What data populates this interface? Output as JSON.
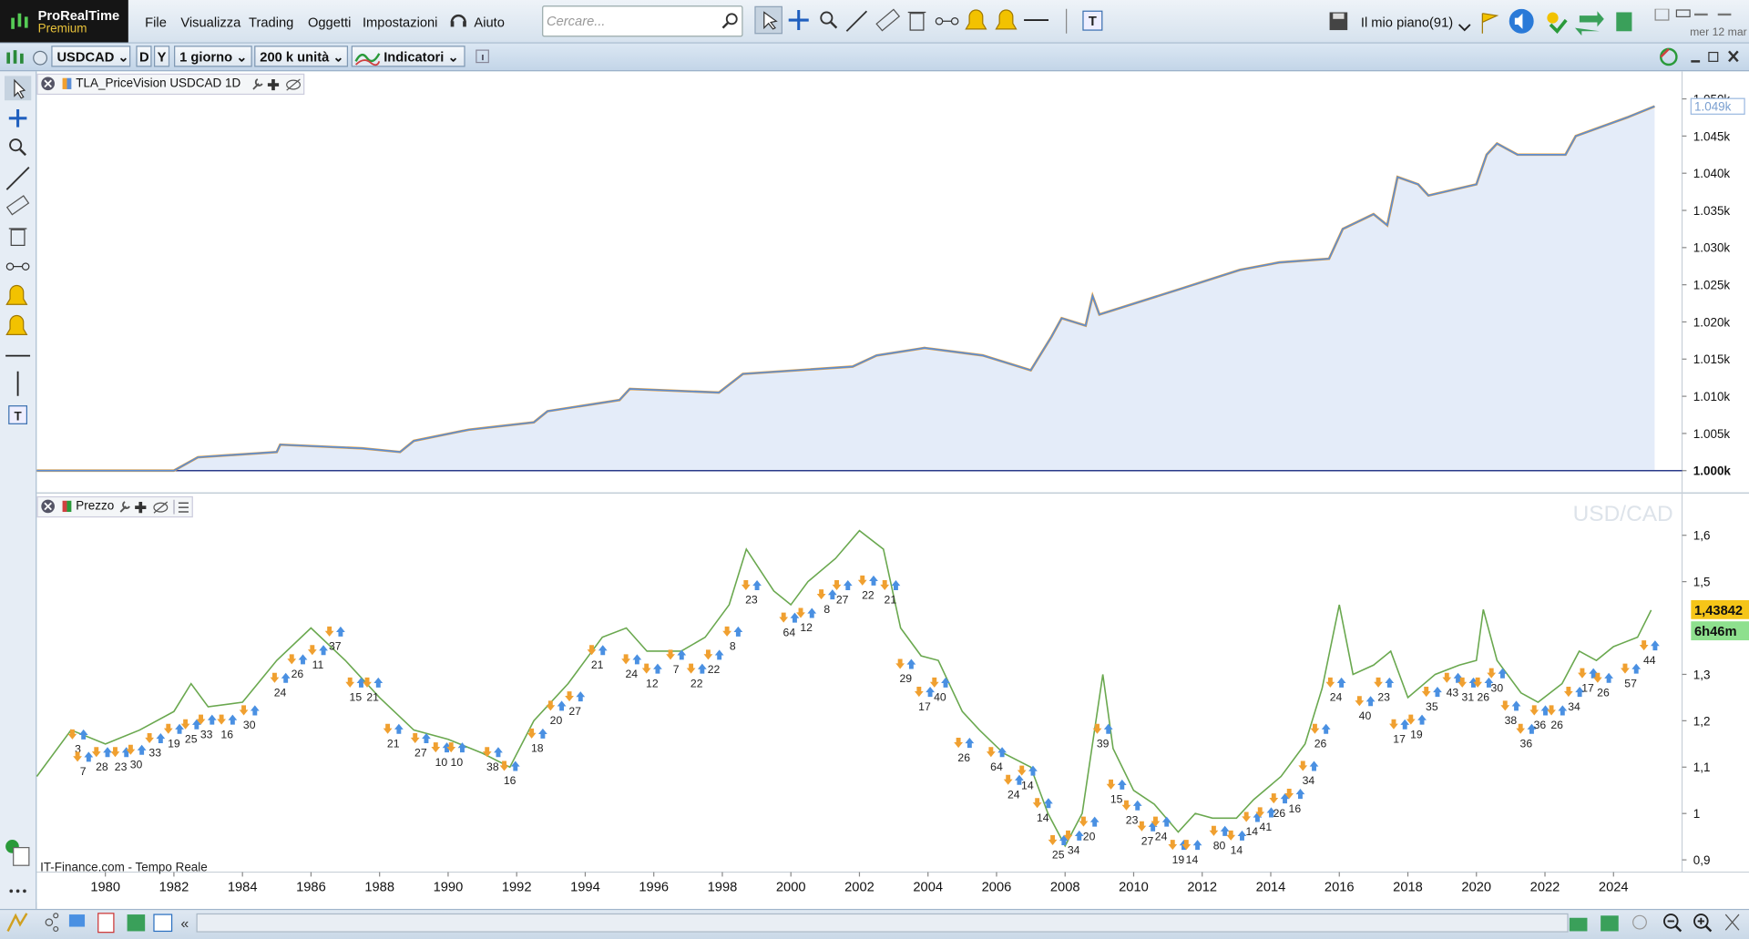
{
  "app": {
    "name": "ProRealTime",
    "edition": "Premium"
  },
  "menu": [
    "File",
    "Visualizza",
    "Trading",
    "Oggetti",
    "Impostazioni"
  ],
  "help": "Aiuto",
  "search_placeholder": "Cercare...",
  "plan": "Il mio piano(91)",
  "date": "mer 12 mar",
  "toolbar": {
    "instrument": "USDCAD",
    "period_d": "D",
    "period_y": "Y",
    "interval": "1 giorno",
    "units": "200 k unità",
    "indicators": "Indicatori"
  },
  "source": "IT-Finance.com - Tempo Reale",
  "chart_data": [
    {
      "type": "area",
      "title": "TLA_PriceVision USDCAD 1D",
      "color": "#5b8ed6",
      "fill_color": "#e4ecf9",
      "xlim": [
        1978.0,
        2026.0
      ],
      "x": [
        1978.0,
        1982.0,
        1982.7,
        1985.0,
        1985.1,
        1987.5,
        1988.6,
        1989.0,
        1990.6,
        1992.5,
        1992.9,
        1995.0,
        1995.3,
        1997.9,
        1998.6,
        2001.8,
        2002.5,
        2003.9,
        2005.6,
        2007.0,
        2007.6,
        2007.9,
        2008.6,
        2008.8,
        2009.0,
        2011.4,
        2013.1,
        2014.25,
        2015.7,
        2016.1,
        2017.0,
        2017.4,
        2017.7,
        2018.3,
        2018.6,
        2020.0,
        2020.3,
        2020.6,
        2021.2,
        2022.6,
        2022.9,
        2024.4,
        2025.2
      ],
      "values": [
        1.0,
        1.0,
        1.0018,
        1.0025,
        1.0035,
        1.003,
        1.0025,
        1.004,
        1.0055,
        1.0065,
        1.008,
        1.0095,
        1.011,
        1.0105,
        1.013,
        1.014,
        1.0155,
        1.0165,
        1.0155,
        1.0135,
        1.018,
        1.0205,
        1.0195,
        1.0235,
        1.021,
        1.0245,
        1.027,
        1.028,
        1.0285,
        1.0325,
        1.0345,
        1.033,
        1.0395,
        1.0385,
        1.037,
        1.0385,
        1.0425,
        1.044,
        1.0425,
        1.0425,
        1.045,
        1.0475,
        1.049
      ],
      "ylim": [
        0.9973,
        1.0534
      ],
      "yticks": [
        {
          "value": 1.0,
          "label": "1.000k"
        },
        {
          "value": 1.005,
          "label": "1.005k"
        },
        {
          "value": 1.01,
          "label": "1.010k"
        },
        {
          "value": 1.015,
          "label": "1.015k"
        },
        {
          "value": 1.02,
          "label": "1.020k"
        },
        {
          "value": 1.025,
          "label": "1.025k"
        },
        {
          "value": 1.03,
          "label": "1.030k"
        },
        {
          "value": 1.035,
          "label": "1.035k"
        },
        {
          "value": 1.04,
          "label": "1.040k"
        },
        {
          "value": 1.045,
          "label": "1.045k"
        },
        {
          "value": 1.05,
          "label": "1.050k"
        }
      ],
      "last_value": 1.049,
      "last_value_label": "1.049k"
    },
    {
      "type": "line",
      "title": "Prezzo",
      "watermark": "USD/CAD",
      "color": "#6aa84f",
      "xlim": [
        1978.0,
        2026.0
      ],
      "xticks": [
        1980,
        1982,
        1984,
        1986,
        1988,
        1990,
        1992,
        1994,
        1996,
        1998,
        2000,
        2002,
        2004,
        2006,
        2008,
        2010,
        2012,
        2014,
        2016,
        2018,
        2020,
        2022,
        2024
      ],
      "x": [
        1978.0,
        1979.0,
        1980.0,
        1981.0,
        1982.0,
        1982.5,
        1983.0,
        1984.0,
        1985.0,
        1986.0,
        1987.0,
        1988.0,
        1989.0,
        1990.0,
        1991.0,
        1991.8,
        1992.5,
        1993.5,
        1994.5,
        1995.2,
        1995.8,
        1996.8,
        1997.5,
        1998.2,
        1998.7,
        1999.5,
        2000.0,
        2000.5,
        2001.3,
        2002.0,
        2002.7,
        2003.2,
        2003.8,
        2004.3,
        2005.0,
        2005.5,
        2006.2,
        2007.0,
        2007.5,
        2008.0,
        2008.5,
        2009.1,
        2009.4,
        2010.0,
        2010.6,
        2011.3,
        2011.8,
        2012.3,
        2013.0,
        2013.5,
        2014.3,
        2015.0,
        2015.5,
        2016.0,
        2016.4,
        2017.0,
        2017.5,
        2018.0,
        2018.8,
        2019.5,
        2020.0,
        2020.2,
        2020.6,
        2021.3,
        2021.8,
        2022.5,
        2023.0,
        2023.5,
        2024.0,
        2024.7,
        2025.1
      ],
      "values": [
        1.08,
        1.18,
        1.15,
        1.18,
        1.22,
        1.28,
        1.23,
        1.24,
        1.33,
        1.4,
        1.33,
        1.25,
        1.18,
        1.16,
        1.13,
        1.1,
        1.2,
        1.28,
        1.38,
        1.4,
        1.35,
        1.35,
        1.38,
        1.45,
        1.57,
        1.48,
        1.45,
        1.5,
        1.55,
        1.61,
        1.57,
        1.4,
        1.34,
        1.33,
        1.22,
        1.18,
        1.13,
        1.1,
        1.0,
        0.93,
        1.0,
        1.3,
        1.14,
        1.05,
        1.02,
        0.96,
        1.0,
        0.99,
        0.99,
        1.03,
        1.08,
        1.15,
        1.27,
        1.45,
        1.3,
        1.32,
        1.35,
        1.25,
        1.3,
        1.32,
        1.33,
        1.44,
        1.33,
        1.26,
        1.24,
        1.28,
        1.35,
        1.33,
        1.36,
        1.38,
        1.43842
      ],
      "ylim": [
        0.876,
        1.6865
      ],
      "yticks": [
        {
          "value": 0.9,
          "label": "0,9"
        },
        1,
        {
          "value": 1.1,
          "label": "1,1"
        },
        {
          "value": 1.2,
          "label": "1,2"
        },
        {
          "value": 1.3,
          "label": "1,3"
        },
        {
          "value": 1.5,
          "label": "1,5"
        },
        {
          "value": 1.6,
          "label": "1,6"
        }
      ],
      "last_value": 1.43842,
      "last_value_label": "1,43842",
      "countdown": "6h46m",
      "annotations": [
        {
          "x": 1979.2,
          "y": 1.138,
          "label": "3"
        },
        {
          "x": 1979.35,
          "y": 1.09,
          "label": "7"
        },
        {
          "x": 1979.9,
          "y": 1.1,
          "label": "28"
        },
        {
          "x": 1980.45,
          "y": 1.1,
          "label": "23"
        },
        {
          "x": 1980.9,
          "y": 1.105,
          "label": "30"
        },
        {
          "x": 1981.45,
          "y": 1.13,
          "label": "33"
        },
        {
          "x": 1982.0,
          "y": 1.15,
          "label": "19"
        },
        {
          "x": 1982.5,
          "y": 1.16,
          "label": "25"
        },
        {
          "x": 1982.95,
          "y": 1.17,
          "label": "33"
        },
        {
          "x": 1983.55,
          "y": 1.17,
          "label": "16"
        },
        {
          "x": 1984.2,
          "y": 1.19,
          "label": "30"
        },
        {
          "x": 1985.1,
          "y": 1.26,
          "label": "24"
        },
        {
          "x": 1985.6,
          "y": 1.3,
          "label": "26"
        },
        {
          "x": 1986.2,
          "y": 1.32,
          "label": "11"
        },
        {
          "x": 1986.7,
          "y": 1.36,
          "label": "37"
        },
        {
          "x": 1987.3,
          "y": 1.25,
          "label": "15"
        },
        {
          "x": 1987.8,
          "y": 1.25,
          "label": "21"
        },
        {
          "x": 1988.4,
          "y": 1.15,
          "label": "21"
        },
        {
          "x": 1989.2,
          "y": 1.13,
          "label": "27"
        },
        {
          "x": 1989.8,
          "y": 1.11,
          "label": "10"
        },
        {
          "x": 1990.25,
          "y": 1.11,
          "label": "10"
        },
        {
          "x": 1991.3,
          "y": 1.1,
          "label": "38"
        },
        {
          "x": 1991.8,
          "y": 1.07,
          "label": "16"
        },
        {
          "x": 1992.6,
          "y": 1.14,
          "label": "18"
        },
        {
          "x": 1993.15,
          "y": 1.2,
          "label": "20"
        },
        {
          "x": 1993.7,
          "y": 1.22,
          "label": "27"
        },
        {
          "x": 1994.35,
          "y": 1.32,
          "label": "21"
        },
        {
          "x": 1995.35,
          "y": 1.3,
          "label": "24"
        },
        {
          "x": 1995.95,
          "y": 1.28,
          "label": "12"
        },
        {
          "x": 1996.65,
          "y": 1.31,
          "label": "7"
        },
        {
          "x": 1997.25,
          "y": 1.28,
          "label": "22"
        },
        {
          "x": 1997.75,
          "y": 1.31,
          "label": "22"
        },
        {
          "x": 1998.3,
          "y": 1.36,
          "label": "8"
        },
        {
          "x": 1998.85,
          "y": 1.46,
          "label": "23"
        },
        {
          "x": 1999.95,
          "y": 1.39,
          "label": "64"
        },
        {
          "x": 2000.45,
          "y": 1.4,
          "label": "12"
        },
        {
          "x": 2001.05,
          "y": 1.44,
          "label": "8"
        },
        {
          "x": 2001.5,
          "y": 1.46,
          "label": "27"
        },
        {
          "x": 2002.25,
          "y": 1.47,
          "label": "22"
        },
        {
          "x": 2002.9,
          "y": 1.46,
          "label": "21"
        },
        {
          "x": 2003.35,
          "y": 1.29,
          "label": "29"
        },
        {
          "x": 2003.9,
          "y": 1.23,
          "label": "17"
        },
        {
          "x": 2004.35,
          "y": 1.25,
          "label": "40"
        },
        {
          "x": 2005.05,
          "y": 1.12,
          "label": "26"
        },
        {
          "x": 2006.0,
          "y": 1.1,
          "label": "64"
        },
        {
          "x": 2006.5,
          "y": 1.04,
          "label": "24"
        },
        {
          "x": 2006.9,
          "y": 1.06,
          "label": "14"
        },
        {
          "x": 2007.35,
          "y": 0.99,
          "label": "14"
        },
        {
          "x": 2007.8,
          "y": 0.91,
          "label": "25"
        },
        {
          "x": 2008.25,
          "y": 0.92,
          "label": "34"
        },
        {
          "x": 2008.7,
          "y": 0.95,
          "label": "20"
        },
        {
          "x": 2009.1,
          "y": 1.15,
          "label": "39"
        },
        {
          "x": 2009.5,
          "y": 1.03,
          "label": "15"
        },
        {
          "x": 2009.95,
          "y": 0.985,
          "label": "23"
        },
        {
          "x": 2010.4,
          "y": 0.94,
          "label": "27"
        },
        {
          "x": 2010.8,
          "y": 0.95,
          "label": "24"
        },
        {
          "x": 2011.3,
          "y": 0.9,
          "label": "19"
        },
        {
          "x": 2011.7,
          "y": 0.9,
          "label": "14"
        },
        {
          "x": 2012.5,
          "y": 0.93,
          "label": "80"
        },
        {
          "x": 2013.0,
          "y": 0.92,
          "label": "14"
        },
        {
          "x": 2013.45,
          "y": 0.96,
          "label": "14"
        },
        {
          "x": 2013.85,
          "y": 0.97,
          "label": "41"
        },
        {
          "x": 2014.25,
          "y": 1.0,
          "label": "26"
        },
        {
          "x": 2014.7,
          "y": 1.01,
          "label": "16"
        },
        {
          "x": 2015.1,
          "y": 1.07,
          "label": "34"
        },
        {
          "x": 2015.45,
          "y": 1.15,
          "label": "26"
        },
        {
          "x": 2015.9,
          "y": 1.25,
          "label": "24"
        },
        {
          "x": 2016.75,
          "y": 1.21,
          "label": "40"
        },
        {
          "x": 2017.3,
          "y": 1.25,
          "label": "23"
        },
        {
          "x": 2017.75,
          "y": 1.16,
          "label": "17"
        },
        {
          "x": 2018.25,
          "y": 1.17,
          "label": "19"
        },
        {
          "x": 2018.7,
          "y": 1.23,
          "label": "35"
        },
        {
          "x": 2019.3,
          "y": 1.26,
          "label": "43"
        },
        {
          "x": 2019.75,
          "y": 1.25,
          "label": "31"
        },
        {
          "x": 2020.2,
          "y": 1.25,
          "label": "26"
        },
        {
          "x": 2020.6,
          "y": 1.27,
          "label": "30"
        },
        {
          "x": 2021.0,
          "y": 1.2,
          "label": "38"
        },
        {
          "x": 2021.45,
          "y": 1.15,
          "label": "36"
        },
        {
          "x": 2021.85,
          "y": 1.19,
          "label": "36"
        },
        {
          "x": 2022.35,
          "y": 1.19,
          "label": "26"
        },
        {
          "x": 2022.85,
          "y": 1.23,
          "label": "34"
        },
        {
          "x": 2023.25,
          "y": 1.27,
          "label": "17"
        },
        {
          "x": 2023.7,
          "y": 1.26,
          "label": "26"
        },
        {
          "x": 2024.5,
          "y": 1.28,
          "label": "57"
        },
        {
          "x": 2025.05,
          "y": 1.33,
          "label": "44"
        }
      ]
    }
  ]
}
